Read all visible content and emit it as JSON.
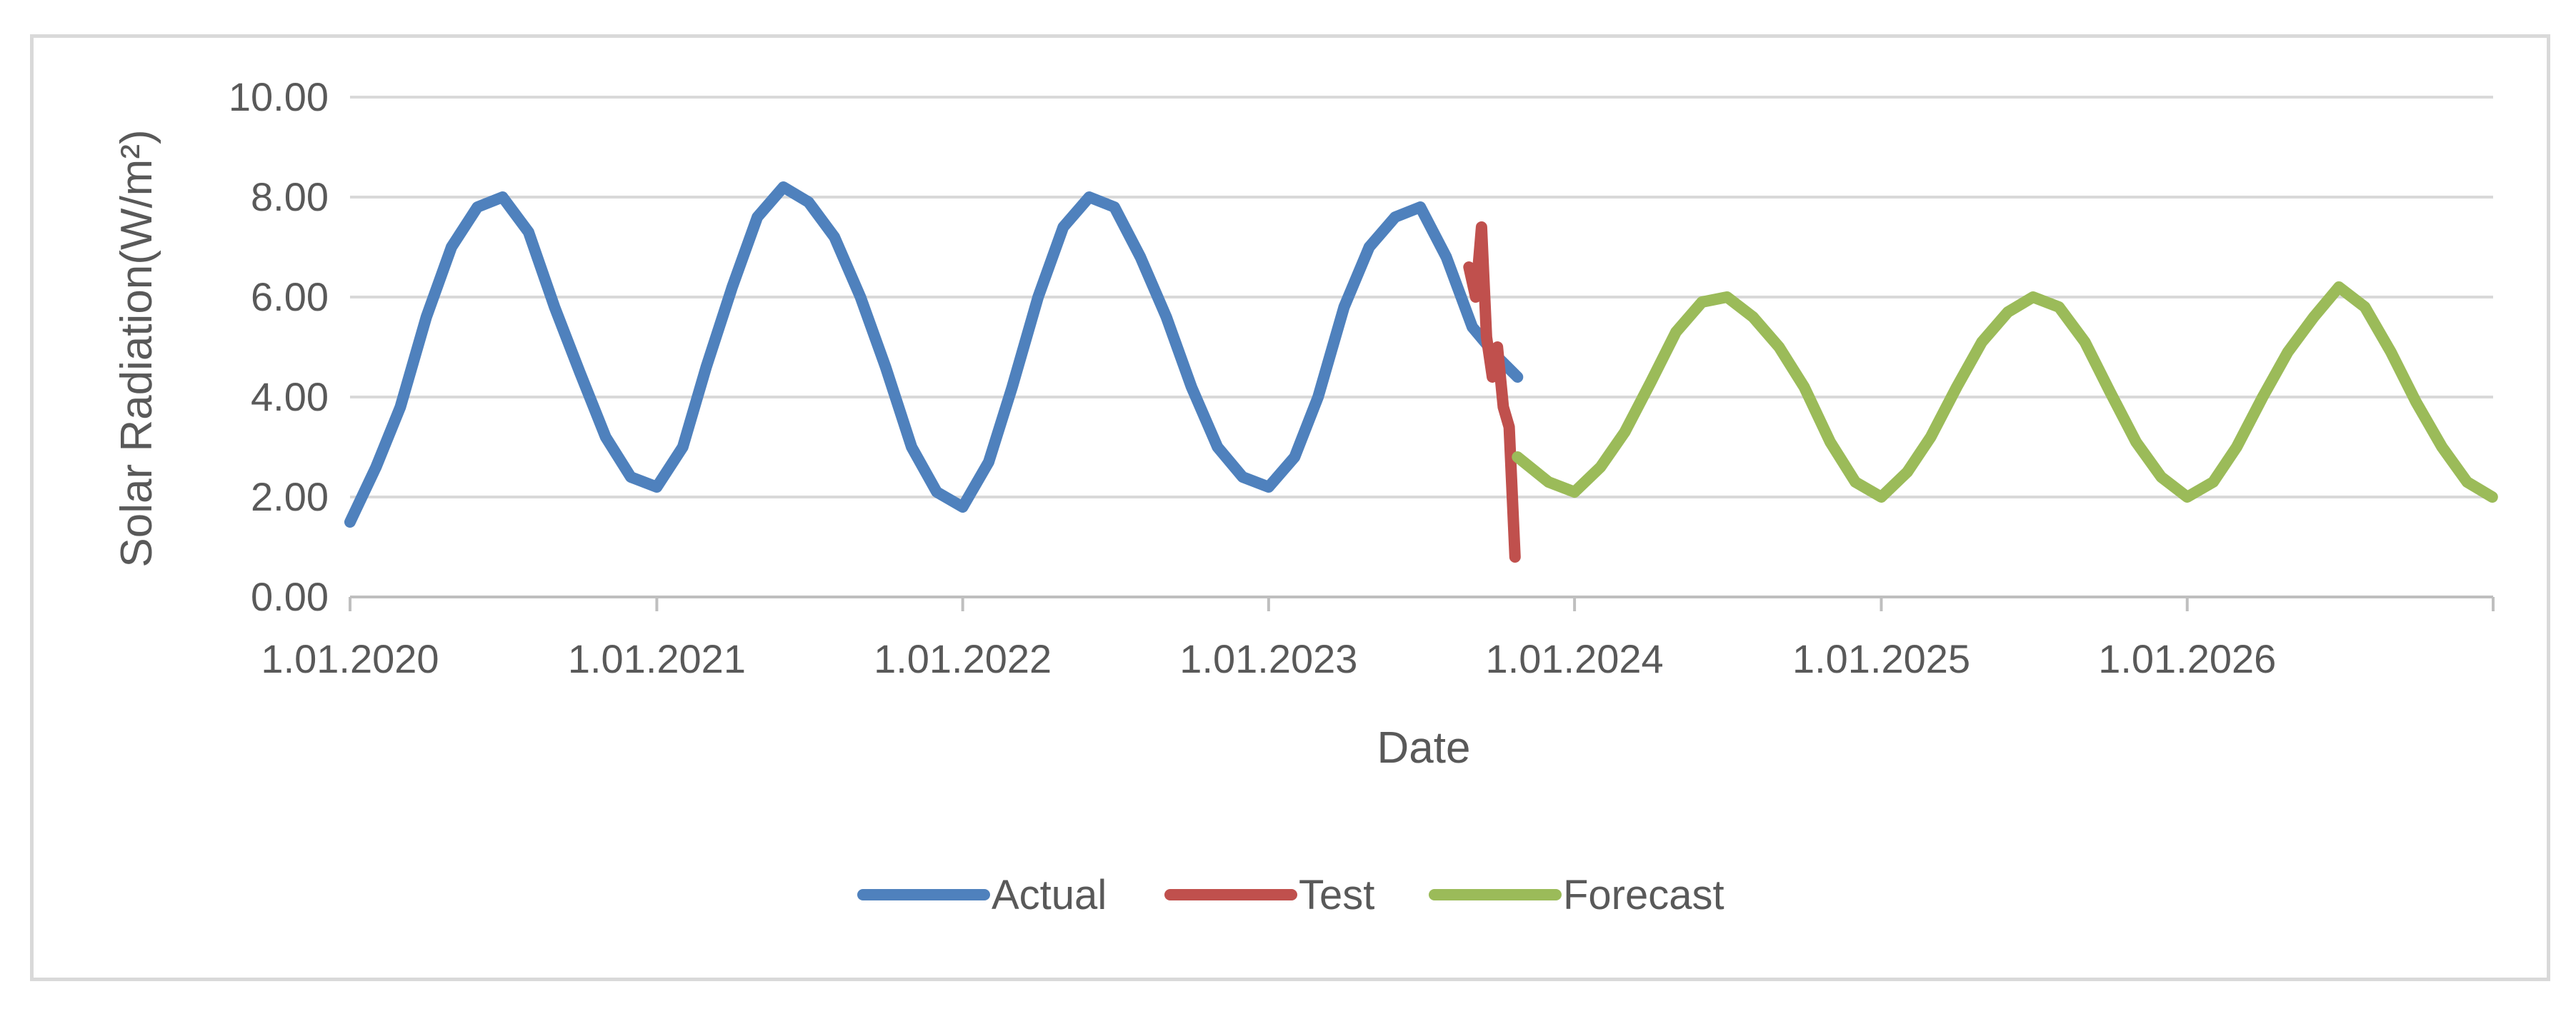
{
  "chart_data": {
    "type": "line",
    "title": "",
    "xlabel": "Date",
    "ylabel": "Solar Radiation(W/m²)",
    "ylim": [
      0,
      10
    ],
    "yticks": [
      "0.00",
      "2.00",
      "4.00",
      "6.00",
      "8.00",
      "10.00"
    ],
    "xlim": [
      "2020-01-01",
      "2027-01-01"
    ],
    "xticks": [
      {
        "date": "2020-01-01",
        "label": "1.01.2020"
      },
      {
        "date": "2021-01-01",
        "label": "1.01.2021"
      },
      {
        "date": "2022-01-01",
        "label": "1.01.2022"
      },
      {
        "date": "2023-01-01",
        "label": "1.01.2023"
      },
      {
        "date": "2024-01-01",
        "label": "1.01.2024"
      },
      {
        "date": "2025-01-01",
        "label": "1.01.2025"
      },
      {
        "date": "2026-01-01",
        "label": "1.01.2026"
      }
    ],
    "grid": true,
    "legend_position": "bottom",
    "series": [
      {
        "name": "Actual",
        "color": "#4f81bd",
        "x": [
          "2020-01-01",
          "2020-02-01",
          "2020-03-01",
          "2020-04-01",
          "2020-05-01",
          "2020-06-01",
          "2020-07-01",
          "2020-08-01",
          "2020-09-01",
          "2020-10-01",
          "2020-11-01",
          "2020-12-01",
          "2021-01-01",
          "2021-02-01",
          "2021-03-01",
          "2021-04-01",
          "2021-05-01",
          "2021-06-01",
          "2021-07-01",
          "2021-08-01",
          "2021-09-01",
          "2021-10-01",
          "2021-11-01",
          "2021-12-01",
          "2022-01-01",
          "2022-02-01",
          "2022-03-01",
          "2022-04-01",
          "2022-05-01",
          "2022-06-01",
          "2022-07-01",
          "2022-08-01",
          "2022-09-01",
          "2022-10-01",
          "2022-11-01",
          "2022-12-01",
          "2023-01-01",
          "2023-02-01",
          "2023-03-01",
          "2023-04-01",
          "2023-05-01",
          "2023-06-01",
          "2023-07-01",
          "2023-08-01",
          "2023-09-01",
          "2023-10-01",
          "2023-10-25"
        ],
        "y": [
          1.5,
          2.6,
          3.8,
          5.6,
          7.0,
          7.8,
          8.0,
          7.3,
          5.8,
          4.5,
          3.2,
          2.4,
          2.2,
          3.0,
          4.6,
          6.2,
          7.6,
          8.2,
          7.9,
          7.2,
          6.0,
          4.6,
          3.0,
          2.1,
          1.8,
          2.7,
          4.2,
          6.0,
          7.4,
          8.0,
          7.8,
          6.8,
          5.6,
          4.2,
          3.0,
          2.4,
          2.2,
          2.8,
          4.0,
          5.8,
          7.0,
          7.6,
          7.8,
          6.8,
          5.4,
          4.8,
          4.4
        ]
      },
      {
        "name": "Test",
        "color": "#c0504d",
        "x": [
          "2023-08-28",
          "2023-09-05",
          "2023-09-12",
          "2023-09-18",
          "2023-09-25",
          "2023-10-01",
          "2023-10-08",
          "2023-10-15",
          "2023-10-22"
        ],
        "y": [
          6.6,
          6.0,
          7.4,
          5.2,
          4.4,
          5.0,
          3.8,
          3.4,
          0.8
        ]
      },
      {
        "name": "Forecast",
        "color": "#9bbb59",
        "x": [
          "2023-10-25",
          "2023-12-01",
          "2024-01-01",
          "2024-02-01",
          "2024-03-01",
          "2024-04-01",
          "2024-05-01",
          "2024-06-01",
          "2024-07-01",
          "2024-08-01",
          "2024-09-01",
          "2024-10-01",
          "2024-11-01",
          "2024-12-01",
          "2025-01-01",
          "2025-02-01",
          "2025-03-01",
          "2025-04-01",
          "2025-05-01",
          "2025-06-01",
          "2025-07-01",
          "2025-08-01",
          "2025-09-01",
          "2025-10-01",
          "2025-11-01",
          "2025-12-01",
          "2026-01-01",
          "2026-02-01",
          "2026-03-01",
          "2026-04-01",
          "2026-05-01",
          "2026-06-01",
          "2026-07-01",
          "2026-08-01",
          "2026-09-01",
          "2026-10-01",
          "2026-11-01",
          "2026-12-01",
          "2026-12-31"
        ],
        "y": [
          2.8,
          2.3,
          2.1,
          2.6,
          3.3,
          4.3,
          5.3,
          5.9,
          6.0,
          5.6,
          5.0,
          4.2,
          3.1,
          2.3,
          2.0,
          2.5,
          3.2,
          4.2,
          5.1,
          5.7,
          6.0,
          5.8,
          5.1,
          4.1,
          3.1,
          2.4,
          2.0,
          2.3,
          3.0,
          4.0,
          4.9,
          5.6,
          6.2,
          5.8,
          4.9,
          3.9,
          3.0,
          2.3,
          2.0
        ]
      }
    ]
  }
}
